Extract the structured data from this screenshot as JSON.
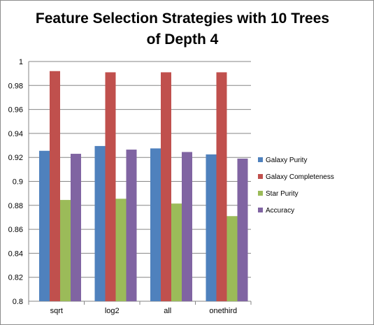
{
  "chart_data": {
    "type": "bar",
    "title_line1": "Feature Selection Strategies with 10 Trees",
    "title_line2": "of Depth 4",
    "categories": [
      "sqrt",
      "log2",
      "all",
      "onethird"
    ],
    "series": [
      {
        "name": "Galaxy Purity",
        "color": "#4f81bd",
        "values": [
          0.9255,
          0.9295,
          0.9275,
          0.9225
        ]
      },
      {
        "name": "Galaxy Completeness",
        "color": "#c0504d",
        "values": [
          0.992,
          0.991,
          0.991,
          0.991
        ]
      },
      {
        "name": "Star Purity",
        "color": "#9bbb59",
        "values": [
          0.8845,
          0.8855,
          0.8815,
          0.871
        ]
      },
      {
        "name": "Accuracy",
        "color": "#8064a2",
        "values": [
          0.923,
          0.9265,
          0.9245,
          0.919
        ]
      }
    ],
    "ylim": [
      0.8,
      1.0
    ],
    "yticks": [
      "0.8",
      "0.82",
      "0.84",
      "0.86",
      "0.88",
      "0.9",
      "0.92",
      "0.94",
      "0.96",
      "0.98",
      "1"
    ],
    "xlabel": "",
    "ylabel": "",
    "grid": true,
    "legend_position": "right"
  }
}
